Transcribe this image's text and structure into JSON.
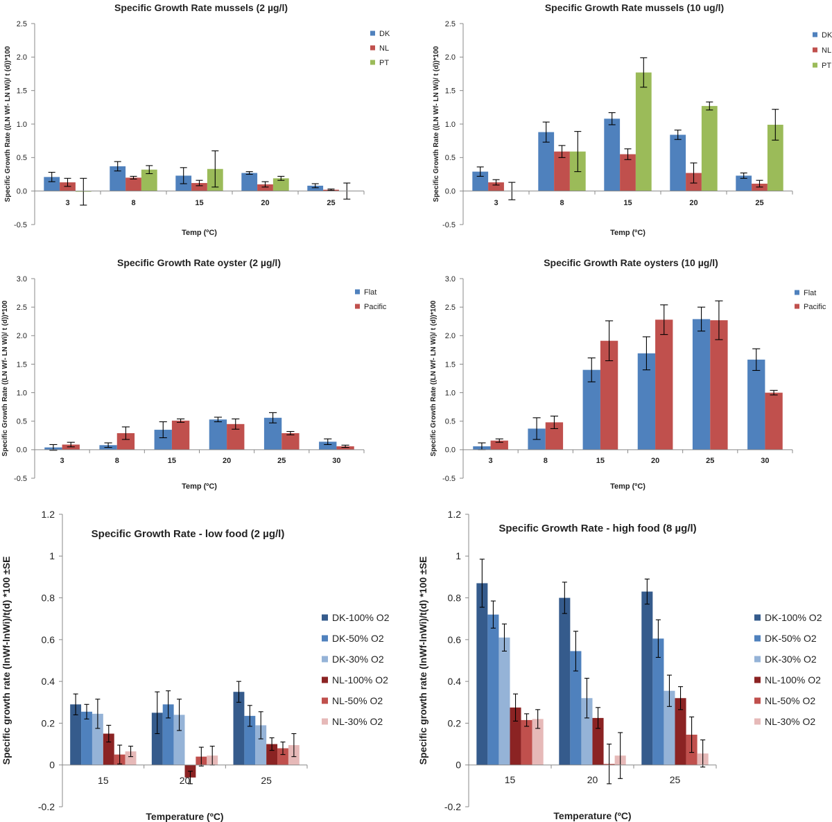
{
  "chart_data": [
    {
      "type": "bar",
      "title": "Specific Growth Rate mussels (2 µg/l)",
      "xlabel": "Temp (ºC)",
      "ylabel": "Specific Growth Rate ((LN Wf- LN Wi)/ t (d))*100",
      "categories": [
        "3",
        "8",
        "15",
        "20",
        "25"
      ],
      "ylim": [
        -0.5,
        2.5
      ],
      "yticks": [
        -0.5,
        0,
        0.5,
        1,
        1.5,
        2,
        2.5
      ],
      "ytick_labels": [
        "-0.5",
        "0.0",
        "0.5",
        "1.0",
        "1.5",
        "2.0",
        "2.5"
      ],
      "legend": "top-right",
      "series": [
        {
          "name": "DK",
          "color": "#4F81BD",
          "values": [
            0.21,
            0.37,
            0.23,
            0.27,
            0.08
          ],
          "errors": [
            0.07,
            0.07,
            0.12,
            0.02,
            0.03
          ]
        },
        {
          "name": "NL",
          "color": "#C0504D",
          "values": [
            0.13,
            0.2,
            0.12,
            0.1,
            0.02
          ],
          "errors": [
            0.06,
            0.02,
            0.04,
            0.04,
            0.01
          ]
        },
        {
          "name": "PT",
          "color": "#9BBB59",
          "values": [
            -0.01,
            0.32,
            0.33,
            0.19,
            0.0
          ],
          "errors": [
            0.2,
            0.06,
            0.27,
            0.03,
            0.12
          ]
        }
      ]
    },
    {
      "type": "bar",
      "title": "Specific Growth Rate mussels (10 ug/l)",
      "xlabel": "Temp (ºC)",
      "ylabel": "Specific Growth Rate ((LN Wf- LN Wi)/ t (d))*100",
      "categories": [
        "3",
        "8",
        "15",
        "20",
        "25"
      ],
      "ylim": [
        -0.5,
        2.5
      ],
      "yticks": [
        -0.5,
        0,
        0.5,
        1,
        1.5,
        2,
        2.5
      ],
      "ytick_labels": [
        "-0.5",
        "0.0",
        "0.5",
        "1.0",
        "1.5",
        "2.0",
        "2.5"
      ],
      "legend": "top-right",
      "series": [
        {
          "name": "DK",
          "color": "#4F81BD",
          "values": [
            0.29,
            0.88,
            1.08,
            0.84,
            0.23
          ],
          "errors": [
            0.07,
            0.15,
            0.09,
            0.07,
            0.04
          ]
        },
        {
          "name": "NL",
          "color": "#C0504D",
          "values": [
            0.13,
            0.59,
            0.55,
            0.27,
            0.11
          ],
          "errors": [
            0.04,
            0.09,
            0.08,
            0.15,
            0.05
          ]
        },
        {
          "name": "PT",
          "color": "#9BBB59",
          "values": [
            0.0,
            0.59,
            1.77,
            1.27,
            0.99
          ],
          "errors": [
            0.13,
            0.3,
            0.22,
            0.06,
            0.23
          ]
        }
      ]
    },
    {
      "type": "bar",
      "title": "Specific Growth Rate oyster (2 µg/l)",
      "xlabel": "Temp (ºC)",
      "ylabel": "Specific Growth Rate ((LN Wf- LN Wi)/ t (d))*100",
      "categories": [
        "3",
        "8",
        "15",
        "20",
        "25",
        "30"
      ],
      "ylim": [
        -0.5,
        3.0
      ],
      "yticks": [
        -0.5,
        0,
        0.5,
        1,
        1.5,
        2,
        2.5,
        3
      ],
      "ytick_labels": [
        "-0.5",
        "0.0",
        "0.5",
        "1.0",
        "1.5",
        "2.0",
        "2.5",
        "3.0"
      ],
      "legend": "top-right",
      "series": [
        {
          "name": "Flat",
          "color": "#4F81BD",
          "values": [
            0.04,
            0.08,
            0.35,
            0.53,
            0.56,
            0.14
          ],
          "errors": [
            0.05,
            0.04,
            0.14,
            0.04,
            0.09,
            0.05
          ]
        },
        {
          "name": "Pacific",
          "color": "#C0504D",
          "values": [
            0.09,
            0.29,
            0.51,
            0.45,
            0.29,
            0.06
          ],
          "errors": [
            0.04,
            0.11,
            0.03,
            0.09,
            0.03,
            0.02
          ]
        }
      ]
    },
    {
      "type": "bar",
      "title": "Specific Growth Rate oysters (10 µg/l)",
      "xlabel": "Temp (ºC)",
      "ylabel": "Specific Growth Rate ((LN Wf- LN Wi)/ t (d))*100",
      "categories": [
        "3",
        "8",
        "15",
        "20",
        "25",
        "30"
      ],
      "ylim": [
        -0.5,
        3.0
      ],
      "yticks": [
        -0.5,
        0,
        0.5,
        1,
        1.5,
        2,
        2.5,
        3
      ],
      "ytick_labels": [
        "-0.5",
        "0.0",
        "0.5",
        "1.0",
        "1.5",
        "2.0",
        "2.5",
        "3.0"
      ],
      "legend": "top-right",
      "series": [
        {
          "name": "Flat",
          "color": "#4F81BD",
          "values": [
            0.06,
            0.37,
            1.4,
            1.69,
            2.29,
            1.58
          ],
          "errors": [
            0.06,
            0.19,
            0.21,
            0.29,
            0.21,
            0.19
          ]
        },
        {
          "name": "Pacific",
          "color": "#C0504D",
          "values": [
            0.16,
            0.48,
            1.91,
            2.28,
            2.27,
            1.0
          ],
          "errors": [
            0.03,
            0.11,
            0.35,
            0.26,
            0.34,
            0.04
          ]
        }
      ]
    },
    {
      "type": "bar",
      "title": "Specific Growth Rate - low food (2 µg/l)",
      "xlabel": "Temperature (ºC)",
      "ylabel": "Specific growth rate (lnWf-lnWi)/t(d) *100 ±SE",
      "categories": [
        "15",
        "20",
        "25"
      ],
      "ylim": [
        -0.2,
        1.2
      ],
      "yticks": [
        -0.2,
        0,
        0.2,
        0.4,
        0.6,
        0.8,
        1,
        1.2
      ],
      "ytick_labels": [
        "-0.2",
        "0",
        "0.2",
        "0.4",
        "0.6",
        "0.8",
        "1",
        "1.2"
      ],
      "legend": "right",
      "series": [
        {
          "name": "DK-100% O2",
          "color": "#355B8C",
          "values": [
            0.29,
            0.25,
            0.35
          ],
          "errors": [
            0.05,
            0.1,
            0.05
          ]
        },
        {
          "name": "DK-50% O2",
          "color": "#4F81BD",
          "values": [
            0.255,
            0.29,
            0.235
          ],
          "errors": [
            0.035,
            0.065,
            0.05
          ]
        },
        {
          "name": "DK-30% O2",
          "color": "#95B3D7",
          "values": [
            0.245,
            0.24,
            0.19
          ],
          "errors": [
            0.07,
            0.075,
            0.065
          ]
        },
        {
          "name": "NL-100% O2",
          "color": "#8B2323",
          "values": [
            0.15,
            -0.06,
            0.1
          ],
          "errors": [
            0.04,
            0.03,
            0.03
          ]
        },
        {
          "name": "NL-50% O2",
          "color": "#C0504D",
          "values": [
            0.05,
            0.04,
            0.08
          ],
          "errors": [
            0.045,
            0.045,
            0.03
          ]
        },
        {
          "name": "NL-30% O2",
          "color": "#E6B9B8",
          "values": [
            0.065,
            0.045,
            0.095
          ],
          "errors": [
            0.025,
            0.045,
            0.055
          ]
        }
      ]
    },
    {
      "type": "bar",
      "title": "Specific Growth Rate - high food (8 µg/l)",
      "xlabel": "Temperature (ºC)",
      "ylabel": "Specific growth rate (lnWf-lnWi)/t(d) *100 ±SE",
      "categories": [
        "15",
        "20",
        "25"
      ],
      "ylim": [
        -0.2,
        1.2
      ],
      "yticks": [
        -0.2,
        0,
        0.2,
        0.4,
        0.6,
        0.8,
        1,
        1.2
      ],
      "ytick_labels": [
        "-0.2",
        "0",
        "0.2",
        "0.4",
        "0.6",
        "0.8",
        "1",
        "1.2"
      ],
      "legend": "right",
      "series": [
        {
          "name": "DK-100% O2",
          "color": "#355B8C",
          "values": [
            0.87,
            0.8,
            0.83
          ],
          "errors": [
            0.115,
            0.075,
            0.06
          ]
        },
        {
          "name": "DK-50% O2",
          "color": "#4F81BD",
          "values": [
            0.72,
            0.545,
            0.605
          ],
          "errors": [
            0.065,
            0.095,
            0.09
          ]
        },
        {
          "name": "DK-30% O2",
          "color": "#95B3D7",
          "values": [
            0.61,
            0.32,
            0.355
          ],
          "errors": [
            0.065,
            0.095,
            0.075
          ]
        },
        {
          "name": "NL-100% O2",
          "color": "#8B2323",
          "values": [
            0.275,
            0.225,
            0.32
          ],
          "errors": [
            0.065,
            0.05,
            0.055
          ]
        },
        {
          "name": "NL-50% O2",
          "color": "#C0504D",
          "values": [
            0.215,
            0.005,
            0.145
          ],
          "errors": [
            0.03,
            0.095,
            0.085
          ]
        },
        {
          "name": "NL-30% O2",
          "color": "#E6B9B8",
          "values": [
            0.22,
            0.045,
            0.055
          ],
          "errors": [
            0.045,
            0.11,
            0.065
          ]
        }
      ]
    }
  ]
}
